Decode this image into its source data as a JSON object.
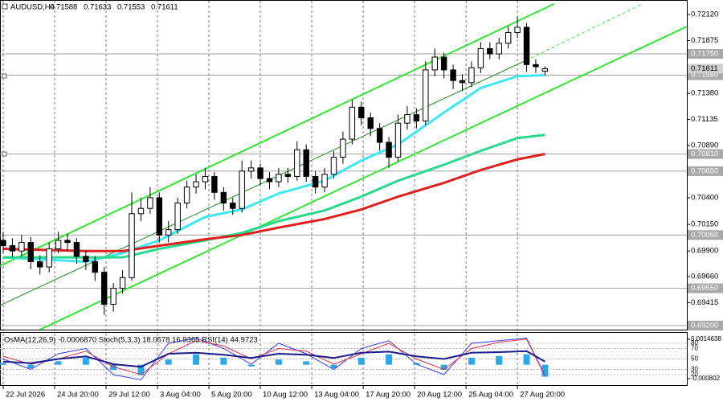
{
  "chart_data": {
    "type": "candlestick",
    "symbol": "AUDUSD,H4",
    "open": [
      0.7,
      0.6995,
      0.699,
      0.6998,
      0.698,
      0.6975,
      0.6992,
      0.7,
      0.6998,
      0.6985,
      0.698,
      0.697,
      0.694,
      0.6955,
      0.6965,
      0.7025,
      0.703,
      0.704,
      0.7005,
      0.701,
      0.7035,
      0.705,
      0.7055,
      0.706,
      0.7045,
      0.7035,
      0.703,
      0.7065,
      0.7068,
      0.7058,
      0.7055,
      0.7062,
      0.706,
      0.7085,
      0.706,
      0.705,
      0.7062,
      0.7078,
      0.7095,
      0.7125,
      0.7115,
      0.7105,
      0.7092,
      0.7078,
      0.711,
      0.7118,
      0.7112,
      0.716,
      0.7172,
      0.716,
      0.715,
      0.7148,
      0.7162,
      0.718,
      0.7175,
      0.7185,
      0.7195,
      0.72,
      0.7165,
      0.71588
    ],
    "high": [
      0.7008,
      0.7002,
      0.7005,
      0.7003,
      0.6986,
      0.6998,
      0.7008,
      0.7006,
      0.7002,
      0.699,
      0.6985,
      0.6975,
      0.696,
      0.6972,
      0.7045,
      0.704,
      0.705,
      0.7045,
      0.7018,
      0.704,
      0.7056,
      0.7062,
      0.7068,
      0.7064,
      0.705,
      0.704,
      0.7075,
      0.7075,
      0.7072,
      0.7064,
      0.7068,
      0.7068,
      0.7093,
      0.709,
      0.7065,
      0.7068,
      0.7084,
      0.7102,
      0.7132,
      0.713,
      0.712,
      0.711,
      0.7097,
      0.7118,
      0.7126,
      0.7124,
      0.7168,
      0.718,
      0.7176,
      0.7165,
      0.7156,
      0.7168,
      0.7186,
      0.7186,
      0.719,
      0.7201,
      0.721,
      0.7204,
      0.717,
      0.71633
    ],
    "low": [
      0.6988,
      0.6984,
      0.6985,
      0.6973,
      0.6968,
      0.697,
      0.6988,
      0.699,
      0.6978,
      0.6972,
      0.6962,
      0.693,
      0.6933,
      0.695,
      0.6962,
      0.7018,
      0.7025,
      0.6998,
      0.6998,
      0.7006,
      0.703,
      0.7044,
      0.7048,
      0.7038,
      0.7028,
      0.7024,
      0.7026,
      0.7058,
      0.7052,
      0.7048,
      0.705,
      0.7054,
      0.7056,
      0.7055,
      0.7044,
      0.7045,
      0.7058,
      0.7072,
      0.709,
      0.7108,
      0.7098,
      0.7084,
      0.7068,
      0.7074,
      0.7104,
      0.7105,
      0.7108,
      0.7154,
      0.7152,
      0.7142,
      0.714,
      0.7144,
      0.7157,
      0.717,
      0.717,
      0.718,
      0.719,
      0.7158,
      0.7157,
      0.71553
    ],
    "close": [
      0.6995,
      0.699,
      0.6998,
      0.698,
      0.6975,
      0.6992,
      0.7,
      0.6998,
      0.6985,
      0.698,
      0.697,
      0.694,
      0.6955,
      0.6965,
      0.7025,
      0.703,
      0.704,
      0.7005,
      0.701,
      0.7035,
      0.705,
      0.7055,
      0.706,
      0.7045,
      0.7035,
      0.703,
      0.7065,
      0.7068,
      0.7058,
      0.7055,
      0.7062,
      0.706,
      0.7085,
      0.706,
      0.705,
      0.7062,
      0.7078,
      0.7095,
      0.7125,
      0.7115,
      0.7105,
      0.7092,
      0.7078,
      0.711,
      0.7118,
      0.7112,
      0.716,
      0.7172,
      0.716,
      0.715,
      0.7148,
      0.7162,
      0.718,
      0.7175,
      0.7185,
      0.7195,
      0.72,
      0.7165,
      0.7163,
      0.71611
    ],
    "xlim": [
      -0.35,
      74.45
    ],
    "ylim": [
      0.69162,
      0.72256
    ],
    "xticks": [
      {
        "value": 0,
        "label": "22 Jul 2026"
      },
      {
        "value": 5.6,
        "label": "24 Jul 20:00"
      },
      {
        "value": 11.2,
        "label": "29 Jul 12:00"
      },
      {
        "value": 16.8,
        "label": "3 Aug 04:00"
      },
      {
        "value": 22.4,
        "label": "5 Aug 20:00"
      },
      {
        "value": 28,
        "label": "10 Aug 12:00"
      },
      {
        "value": 33.6,
        "label": "13 Aug 04:00"
      },
      {
        "value": 39.2,
        "label": "17 Aug 20:00"
      },
      {
        "value": 44.8,
        "label": "20 Aug 12:00"
      },
      {
        "value": 50.4,
        "label": "25 Aug 04:00"
      },
      {
        "value": 56,
        "label": "27 Aug 20:00"
      }
    ],
    "yticks": [
      {
        "value": 0.7212,
        "label": "0.72120"
      },
      {
        "value": 0.71875,
        "label": "0.71875"
      },
      {
        "value": 0.7138,
        "label": "0.71380"
      },
      {
        "value": 0.71135,
        "label": "0.71135"
      },
      {
        "value": 0.7089,
        "label": "0.70890"
      },
      {
        "value": 0.704,
        "label": "0.70400"
      },
      {
        "value": 0.7015,
        "label": "0.70150"
      },
      {
        "value": 0.699,
        "label": "0.69900"
      },
      {
        "value": 0.6966,
        "label": "0.69660"
      },
      {
        "value": 0.69415,
        "label": "0.69415"
      }
    ],
    "levels": [
      {
        "value": 0.7175,
        "label": "0.71750"
      },
      {
        "value": 0.7155,
        "label": "0.71550"
      },
      {
        "value": 0.7081,
        "label": "0.70810"
      },
      {
        "value": 0.7065,
        "label": "0.70650"
      },
      {
        "value": 0.7005,
        "label": "0.70050"
      },
      {
        "value": 0.6955,
        "label": "0.69550"
      },
      {
        "value": 0.692,
        "label": "0.69200"
      }
    ],
    "grid": true,
    "ma": [
      {
        "color": "#3ee8f2",
        "x": [
          0,
          9,
          13,
          17,
          22,
          26,
          30,
          35,
          39,
          43,
          48,
          52,
          56,
          59
        ],
        "values": [
          0.6984,
          0.698,
          0.6988,
          0.7,
          0.7022,
          0.7029,
          0.7044,
          0.7056,
          0.7075,
          0.709,
          0.712,
          0.7143,
          0.7154,
          0.7155
        ]
      },
      {
        "color": "#27d98c",
        "x": [
          0,
          9,
          13,
          17,
          22,
          26,
          30,
          35,
          39,
          43,
          48,
          52,
          56,
          59
        ],
        "values": [
          0.6984,
          0.6984,
          0.6984,
          0.6992,
          0.7,
          0.7007,
          0.7018,
          0.7028,
          0.7041,
          0.7056,
          0.7071,
          0.7084,
          0.7096,
          0.7099
        ]
      },
      {
        "color": "#e0201c",
        "x": [
          0,
          9,
          13,
          17,
          22,
          26,
          30,
          35,
          39,
          43,
          48,
          52,
          56,
          59
        ],
        "values": [
          0.6992,
          0.699,
          0.699,
          0.6995,
          0.7001,
          0.7005,
          0.7012,
          0.702,
          0.7029,
          0.7041,
          0.7054,
          0.7066,
          0.7076,
          0.7081
        ]
      }
    ],
    "trendlines": [
      {
        "color": "#33e633",
        "x": [
          -0.35,
          60
        ],
        "values": [
          0.6976,
          0.7222
        ]
      },
      {
        "color": "#33e633",
        "x": [
          3.94,
          74.45
        ],
        "values": [
          0.6916,
          0.72007
        ]
      },
      {
        "color": "#1f8a1f",
        "x": [
          -0.35,
          56.95
        ],
        "values": [
          0.6939,
          0.7169
        ]
      },
      {
        "color": "#33e633",
        "dashed": true,
        "x": [
          56.95,
          69.64
        ],
        "values": [
          0.7169,
          0.7222
        ]
      }
    ],
    "indicator": {
      "title": "OsMA(12,26,9) -0.0006870  Stoch(5,3,3) 18.0578 16.9365  RSI(14) 44.9723",
      "x": [
        0,
        3,
        6,
        9,
        12,
        15,
        18,
        21,
        24,
        27,
        30,
        33,
        36,
        39,
        42,
        45,
        48,
        51,
        54,
        57,
        59
      ],
      "osma": [
        0.0001,
        -0.0002,
        0.0002,
        0.0004,
        -0.0003,
        -0.0006,
        0.0003,
        0.0006,
        0.0004,
        -0.0001,
        0.0003,
        0.0002,
        -0.0002,
        0.0004,
        0.0006,
        0.0001,
        -0.0003,
        0.0004,
        0.0005,
        0.0006,
        -0.000687
      ],
      "osma_color": "#2aa8e8",
      "osma_lim": [
        -0.00117,
        0.00183
      ],
      "osma_ticks": [
        0.0014638,
        -0.000802
      ],
      "osc_lim": [
        0,
        100
      ],
      "osc_ticks": [
        80,
        70,
        50,
        30,
        20
      ],
      "lines": [
        {
          "color": "#3a3aff",
          "values": [
            50,
            30,
            60,
            70,
            20,
            10,
            80,
            90,
            70,
            40,
            80,
            60,
            30,
            70,
            85,
            40,
            20,
            80,
            85,
            90,
            18.0578
          ]
        },
        {
          "color": "#e0304a",
          "values": [
            55,
            40,
            50,
            65,
            35,
            20,
            60,
            85,
            75,
            50,
            70,
            65,
            40,
            60,
            80,
            50,
            30,
            70,
            82,
            88,
            16.9365
          ]
        },
        {
          "color": "#1a1a8c",
          "width": 2,
          "values": [
            45,
            42,
            50,
            55,
            40,
            35,
            60,
            62,
            58,
            52,
            60,
            58,
            52,
            62,
            64,
            55,
            50,
            62,
            63,
            65,
            44.9723
          ]
        }
      ]
    }
  }
}
